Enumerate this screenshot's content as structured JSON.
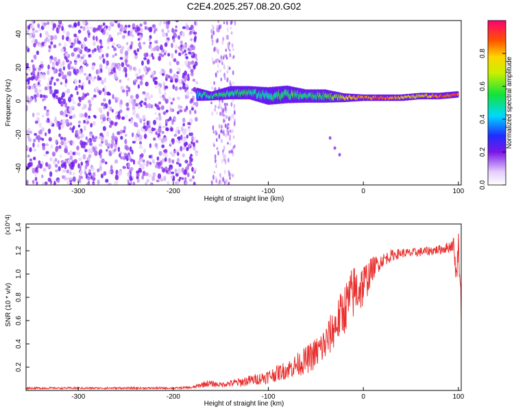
{
  "title": "C2E4.2025.257.08.20.G02",
  "colors": {
    "series": "#e8312f",
    "spectrum_weak": "#c9a8f5",
    "spectrum_mid": "#7a16e8",
    "axis": "#000000"
  },
  "chart_data": [
    {
      "type": "heatmap",
      "title": "C2E4.2025.257.08.20.G02",
      "xlabel": "Height of straight line (km)",
      "ylabel": "Frequency (Hz)",
      "xlim": [
        -355,
        103
      ],
      "ylim": [
        -50,
        48
      ],
      "xticks": [
        -300,
        -200,
        -100,
        0,
        100
      ],
      "yticks": [
        -40,
        -20,
        0,
        20,
        40
      ],
      "colorbar": {
        "label": "Normalized spectral amplitude",
        "range": [
          0,
          1
        ],
        "ticks": [
          0.0,
          0.2,
          0.4,
          0.6,
          0.8
        ]
      },
      "signal_track": {
        "x": [
          -175,
          -160,
          -140,
          -120,
          -100,
          -80,
          -60,
          -40,
          -20,
          0,
          20,
          40,
          60,
          80,
          100
        ],
        "center_hz": [
          4,
          3,
          5,
          5,
          3,
          4,
          3,
          3,
          2,
          2,
          2,
          2,
          3,
          3,
          4
        ],
        "half_width_hz": [
          3,
          2,
          3,
          3,
          4,
          4,
          3,
          3,
          2,
          1.5,
          1.5,
          1.5,
          1.5,
          1.5,
          1.5
        ],
        "amplitude": [
          0.45,
          0.5,
          0.5,
          0.5,
          0.45,
          0.55,
          0.5,
          0.55,
          0.7,
          0.85,
          0.9,
          0.75,
          0.75,
          0.85,
          0.9
        ]
      },
      "noise_region": {
        "x": [
          -355,
          -175
        ],
        "amplitude": [
          0.05,
          0.15
        ]
      }
    },
    {
      "type": "line",
      "xlabel": "Height of straight line (km)",
      "ylabel": "SNR (10 * v/v)",
      "y_scale_label": "(x10^4)",
      "xlim": [
        -355,
        103
      ],
      "ylim": [
        0,
        1.43
      ],
      "xticks": [
        -300,
        -200,
        -100,
        0,
        100
      ],
      "yticks": [
        0.2,
        0.4,
        0.6,
        0.8,
        1.0,
        1.2,
        1.4
      ],
      "series": [
        {
          "name": "SNR",
          "x": [
            -355,
            -300,
            -250,
            -200,
            -180,
            -165,
            -150,
            -130,
            -110,
            -100,
            -90,
            -80,
            -70,
            -60,
            -50,
            -40,
            -30,
            -20,
            -10,
            0,
            10,
            20,
            30,
            40,
            50,
            60,
            70,
            80,
            90,
            95,
            98,
            100,
            103
          ],
          "y": [
            0.02,
            0.02,
            0.02,
            0.02,
            0.025,
            0.06,
            0.05,
            0.07,
            0.1,
            0.12,
            0.15,
            0.18,
            0.22,
            0.26,
            0.32,
            0.4,
            0.55,
            0.7,
            0.85,
            0.9,
            1.05,
            1.12,
            1.16,
            1.18,
            1.18,
            1.19,
            1.2,
            1.21,
            1.23,
            1.26,
            0.95,
            1.3,
            0.7
          ],
          "noise_amp": [
            0.008,
            0.008,
            0.008,
            0.008,
            0.01,
            0.03,
            0.02,
            0.04,
            0.05,
            0.06,
            0.07,
            0.08,
            0.1,
            0.12,
            0.14,
            0.16,
            0.18,
            0.22,
            0.24,
            0.2,
            0.1,
            0.06,
            0.05,
            0.04,
            0.04,
            0.04,
            0.04,
            0.04,
            0.05,
            0.06,
            0.1,
            0.1,
            0.15
          ]
        }
      ]
    }
  ]
}
